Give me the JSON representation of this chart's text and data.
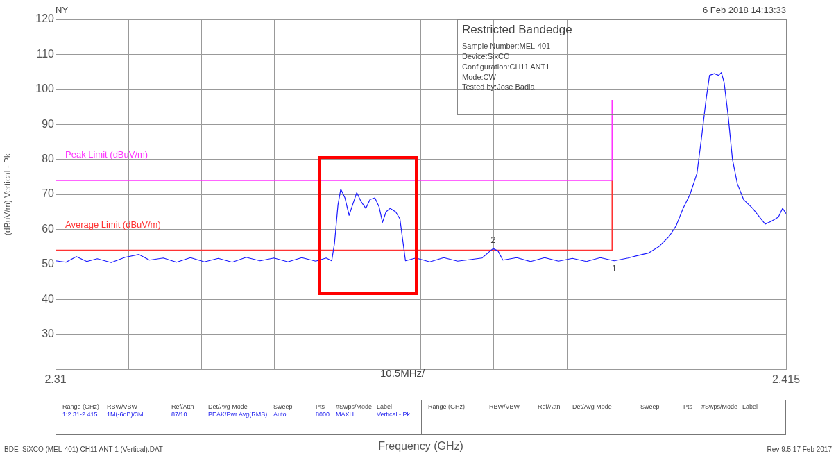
{
  "chart_data": {
    "type": "line",
    "title": "Restricted Bandedge",
    "xlabel": "Frequency (GHz)",
    "ylabel": "(dBuV/m) Vertical - Pk",
    "xlim": [
      2.31,
      2.415
    ],
    "ylim": [
      20,
      120
    ],
    "xticks": [
      2.31,
      {
        "value": 2.3205,
        "label": null
      },
      {
        "value": 2.331,
        "label": null
      },
      {
        "value": 2.3415,
        "label": null
      },
      {
        "value": 2.352,
        "label": null
      },
      {
        "value": 2.3625,
        "label": null
      },
      {
        "value": 2.373,
        "label": null
      },
      {
        "value": 2.3835,
        "label": null
      },
      {
        "value": 2.394,
        "label": null
      },
      {
        "value": 2.4045,
        "label": null
      },
      2.415
    ],
    "yticks": [
      30,
      40,
      50,
      60,
      70,
      80,
      90,
      100,
      110,
      120
    ],
    "grid": true,
    "legend": false,
    "marker": "none",
    "series": [
      {
        "color": "#1a1aff",
        "x": [
          2.31,
          2.3115,
          2.313,
          2.3145,
          2.316,
          2.318,
          2.32,
          2.322,
          2.3235,
          2.3255,
          2.3274,
          2.3294,
          2.3314,
          2.3334,
          2.3354,
          2.3374,
          2.3394,
          2.3414,
          2.3434,
          2.3454,
          2.3474,
          2.3489,
          2.3497,
          2.3501,
          2.3506,
          2.351,
          2.3516,
          2.3522,
          2.3527,
          2.3533,
          2.3539,
          2.3546,
          2.3552,
          2.3559,
          2.3565,
          2.357,
          2.3575,
          2.3581,
          2.3589,
          2.3595,
          2.3599,
          2.3603,
          2.3618,
          2.3638,
          2.3658,
          2.3678,
          2.3698,
          2.3713,
          2.3723,
          2.3729,
          2.3736,
          2.3743,
          2.3763,
          2.3783,
          2.3803,
          2.3823,
          2.3843,
          2.3863,
          2.3883,
          2.3903,
          2.3923,
          2.3937,
          2.3952,
          2.3967,
          2.3982,
          2.3992,
          2.4002,
          2.4012,
          2.4022,
          2.4029,
          2.4035,
          2.404,
          2.4047,
          2.4053,
          2.4057,
          2.4061,
          2.4067,
          2.4073,
          2.408,
          2.4089,
          2.4102,
          2.4112,
          2.412,
          2.4129,
          2.4139,
          2.4145,
          2.415
        ],
        "values": [
          51,
          50.6,
          52.2,
          50.8,
          51.6,
          50.5,
          52,
          52.8,
          51.2,
          51.8,
          50.6,
          51.9,
          50.7,
          51.7,
          50.6,
          52,
          51,
          51.8,
          50.7,
          51.9,
          50.9,
          51.8,
          51,
          56,
          67,
          71.5,
          69,
          64,
          67,
          70.5,
          68,
          66,
          68.5,
          69,
          66.5,
          62,
          65,
          66,
          65,
          63,
          57,
          51,
          51.8,
          50.7,
          51.9,
          50.9,
          51.4,
          51.8,
          53.5,
          54.5,
          53.8,
          51.2,
          51.9,
          50.8,
          51.9,
          50.9,
          51.7,
          50.8,
          51.9,
          51,
          51.8,
          52.5,
          53.2,
          55,
          58,
          61,
          66,
          70,
          76,
          87,
          97,
          104,
          104.5,
          104,
          104.8,
          102,
          92,
          80,
          73,
          68.5,
          66,
          63.5,
          61.5,
          62.3,
          63.5,
          66,
          64.5
        ]
      },
      {
        "name": "Peak Limit (dBuV/m)",
        "color": "#ff33ff",
        "x": [
          2.31,
          2.39,
          2.39
        ],
        "values": [
          74,
          74,
          97
        ]
      },
      {
        "name": "Average Limit (dBuV/m)",
        "color": "#ff3333",
        "x": [
          2.31,
          2.39,
          2.39
        ],
        "values": [
          54,
          54,
          74
        ]
      }
    ],
    "annotations": [
      "NY",
      "6 Feb 2018   14:13:33",
      "Sample Number:MEL-401",
      "Device:SixCO",
      "Configuration:CH11 ANT1",
      "Mode:CW",
      "Tested by:Jose Badia",
      "10.5MHz/",
      "Range (GHz)",
      "RBW/VBW",
      "Ref/Attn",
      "Det/Avg Mode",
      "Sweep",
      "Pts",
      "#Swps/Mode",
      "Label",
      "1:2.31-2.415",
      "1M(-6dB)/3M",
      "87/10",
      "PEAK/Pwr Avg(RMS)",
      "Auto",
      "8000",
      "MAXH",
      "Vertical - Pk",
      "Range (GHz)",
      "RBW/VBW",
      "Ref/Attn",
      "Det/Avg Mode",
      "Sweep",
      "Pts",
      "#Swps/Mode",
      "Label",
      "BDE_SiXCO (MEL-401) CH11 ANT 1 (Vertical).DAT",
      "Rev 9.5 17 Feb 2017",
      {
        "text": "2",
        "x": 2.3729,
        "y": 54.5
      },
      {
        "text": "1",
        "x": 2.3903,
        "y": 51
      }
    ]
  }
}
